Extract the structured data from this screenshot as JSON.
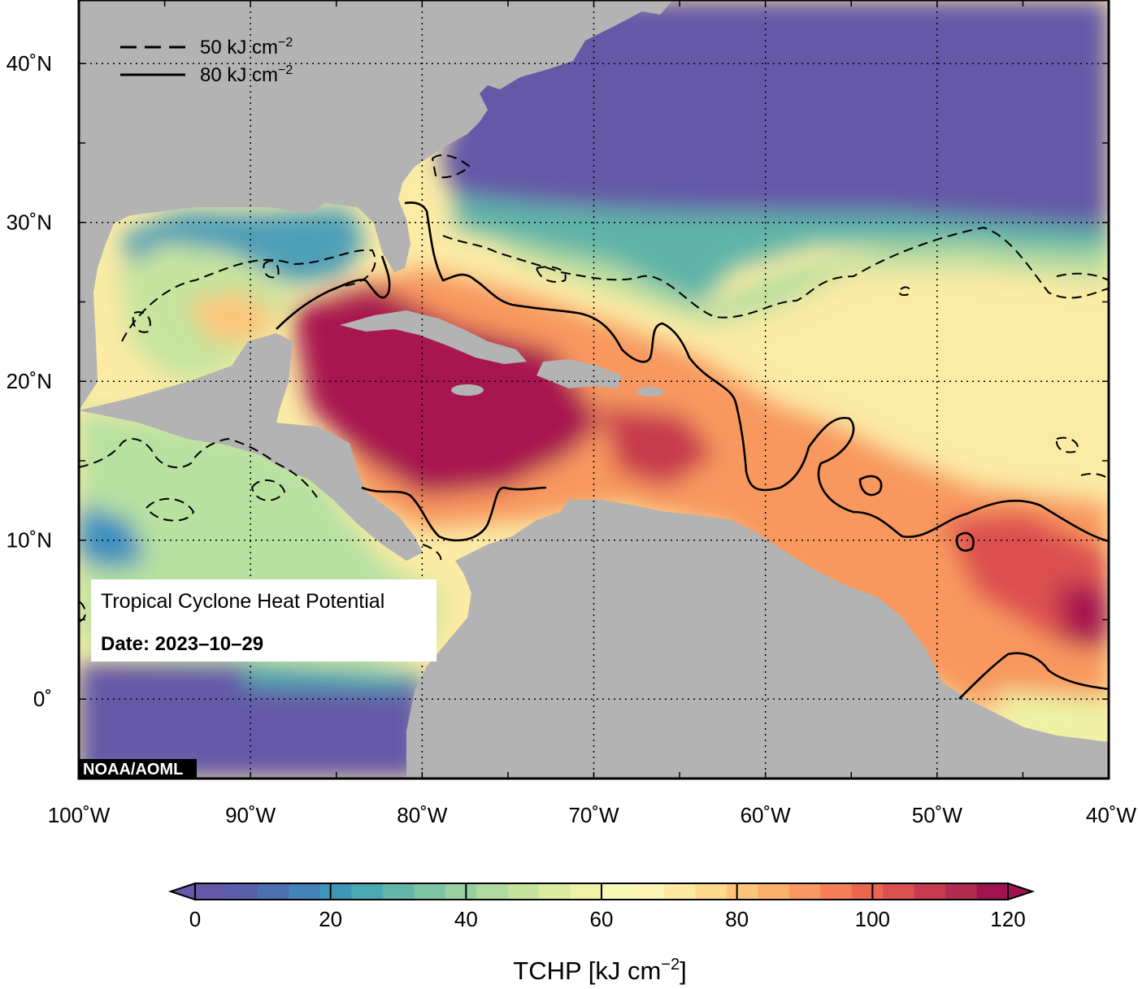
{
  "map": {
    "title": "Tropical Cyclone Heat Potential",
    "date_label": "Date: 2023–10–29",
    "credit": "NOAA/AOML",
    "region": {
      "lon_range": [
        -100,
        -40
      ],
      "lat_range": [
        -5,
        44
      ]
    },
    "lat_ticks": [
      {
        "value": 40,
        "label": "40˚N"
      },
      {
        "value": 30,
        "label": "30˚N"
      },
      {
        "value": 20,
        "label": "20˚N"
      },
      {
        "value": 10,
        "label": "10˚N"
      },
      {
        "value": 0,
        "label": "0˚"
      }
    ],
    "lon_ticks": [
      {
        "value": -100,
        "label": "100˚W"
      },
      {
        "value": -90,
        "label": "90˚W"
      },
      {
        "value": -80,
        "label": "80˚W"
      },
      {
        "value": -70,
        "label": "70˚W"
      },
      {
        "value": -60,
        "label": "60˚W"
      },
      {
        "value": -50,
        "label": "50˚W"
      },
      {
        "value": -40,
        "label": "40˚W"
      }
    ],
    "legend": [
      {
        "style": "dashed",
        "value_label": "50 kJ cm",
        "superscript": "−2"
      },
      {
        "style": "solid",
        "value_label": "80 kJ cm",
        "superscript": "−2"
      }
    ],
    "land_color": "#b3b3b3"
  },
  "colorbar": {
    "title_prefix": "TCHP [kJ cm",
    "title_superscript": "−2",
    "title_suffix": "]",
    "min": 0,
    "max": 120,
    "ticks": [
      {
        "value": 0,
        "label": "0"
      },
      {
        "value": 20,
        "label": "20"
      },
      {
        "value": 40,
        "label": "40"
      },
      {
        "value": 60,
        "label": "60"
      },
      {
        "value": 80,
        "label": "80"
      },
      {
        "value": 100,
        "label": "100"
      },
      {
        "value": 120,
        "label": "120"
      }
    ],
    "colors": [
      "#6558a7",
      "#5a5fac",
      "#4f6fb3",
      "#4484bb",
      "#3e97b9",
      "#4aa9b1",
      "#62b7aa",
      "#7cc4a3",
      "#98d09f",
      "#b0dba0",
      "#c6e49e",
      "#dbec9e",
      "#ecf3a4",
      "#f7f8b5",
      "#fdf5b6",
      "#fee9a0",
      "#fed98b",
      "#fdc57a",
      "#fcb06c",
      "#f99862",
      "#f47f57",
      "#eb6651",
      "#dd5050",
      "#c83a4e",
      "#b22b50",
      "#9e1350"
    ]
  }
}
